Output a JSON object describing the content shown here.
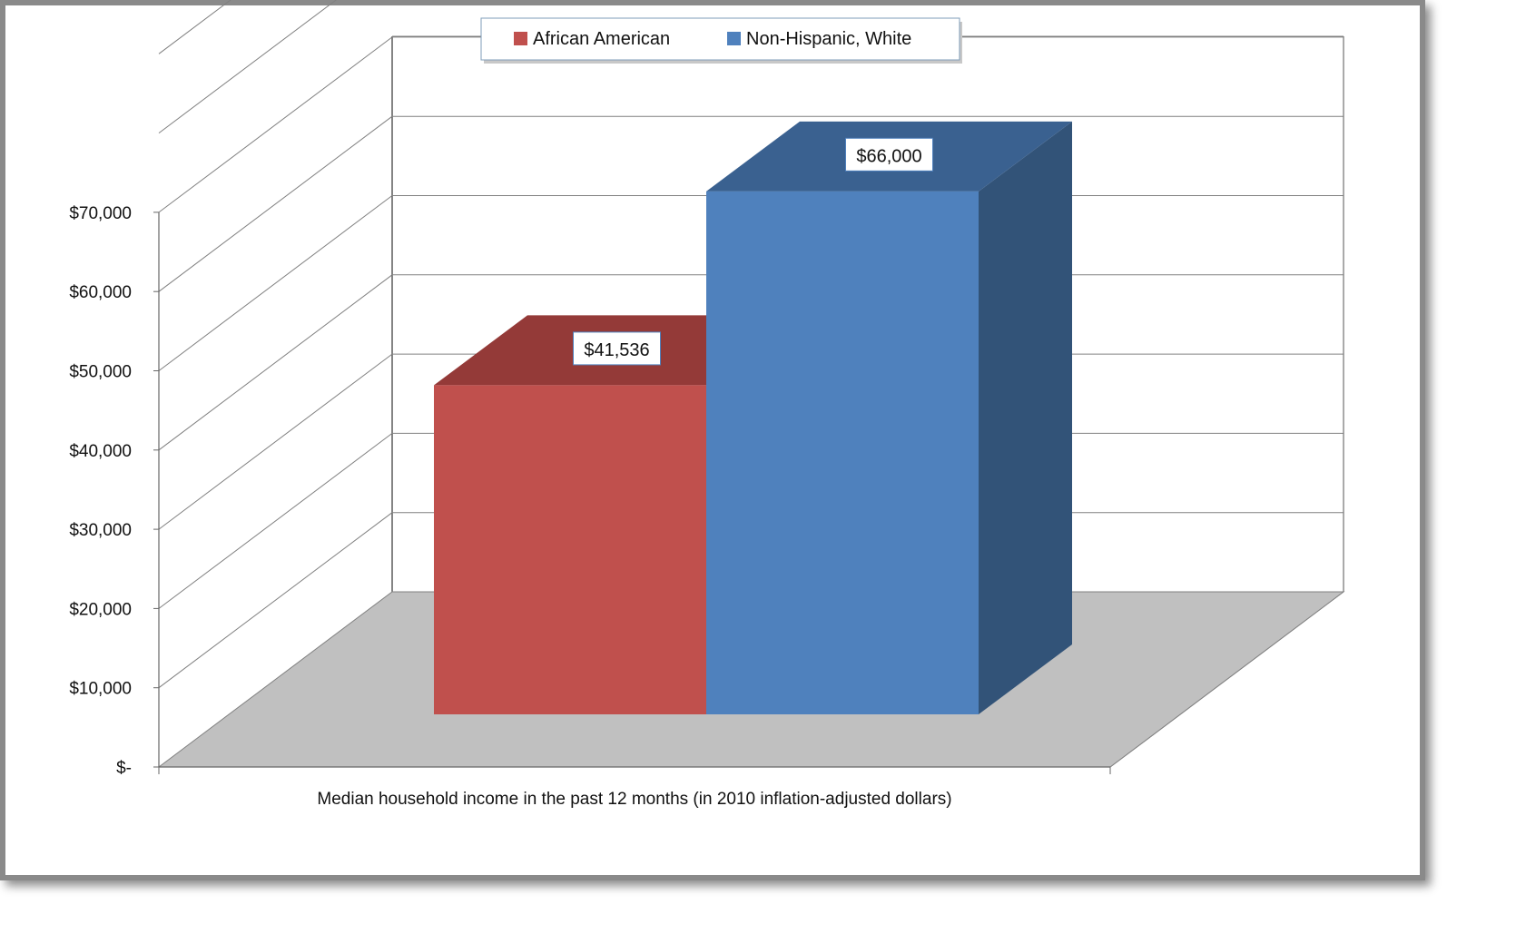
{
  "chart_data": {
    "type": "bar",
    "categories": [
      "Median household income in the past 12 months (in 2010 inflation-adjusted dollars)"
    ],
    "series": [
      {
        "name": "African American",
        "values": [
          41536
        ],
        "label": "$41,536",
        "color": "#C0504D",
        "top_color": "#943A38"
      },
      {
        "name": "Non-Hispanic, White",
        "values": [
          66000
        ],
        "label": "$66,000",
        "color": "#4F81BD",
        "top_color": "#3A6190",
        "side_color": "#325378"
      }
    ],
    "ylim": [
      0,
      70000
    ],
    "yticks": [
      {
        "value": 0,
        "label": "$-"
      },
      {
        "value": 10000,
        "label": "$10,000"
      },
      {
        "value": 20000,
        "label": "$20,000"
      },
      {
        "value": 30000,
        "label": "$30,000"
      },
      {
        "value": 40000,
        "label": "$40,000"
      },
      {
        "value": 50000,
        "label": "$50,000"
      },
      {
        "value": 60000,
        "label": "$60,000"
      },
      {
        "value": 70000,
        "label": "$70,000"
      }
    ],
    "xlabel": "Median household income in the past 12 months (in 2010 inflation-adjusted dollars)",
    "ylabel": "",
    "title": "",
    "grid": true,
    "legend": "top-center",
    "floor_color": "#C0C0C0",
    "grid_color": "#808080"
  }
}
